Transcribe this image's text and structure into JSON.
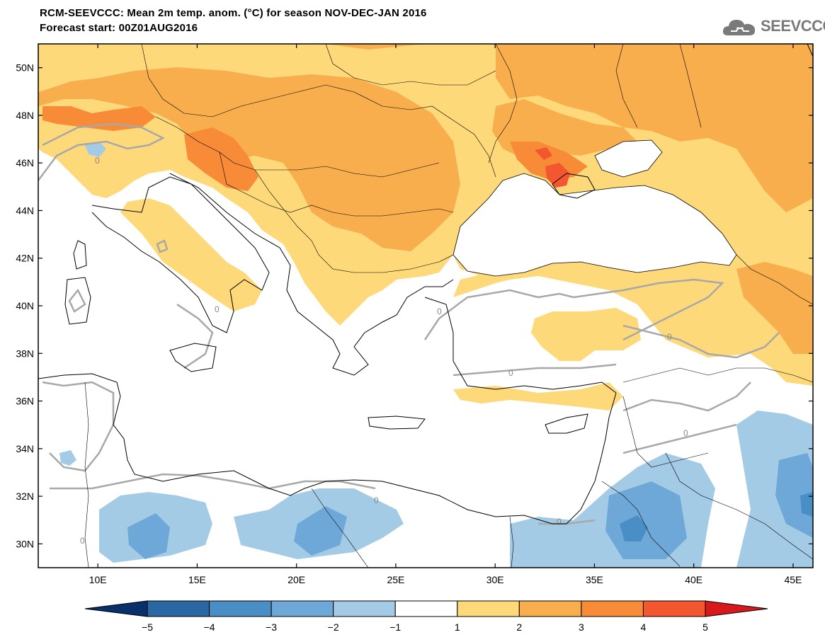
{
  "header": {
    "title_line1": "RCM-SEEVCCC: Mean 2m temp. anom. (°C) for season NOV-DEC-JAN 2016",
    "title_line2": "Forecast start: 00Z01AUG2016"
  },
  "logo": {
    "text": "SEEVCCC",
    "icon": "cloud-icon"
  },
  "map": {
    "lon_range": [
      7,
      46
    ],
    "lat_range": [
      29,
      51
    ],
    "lat_ticks": [
      "50N",
      "48N",
      "46N",
      "44N",
      "42N",
      "40N",
      "38N",
      "36N",
      "34N",
      "32N",
      "30N"
    ],
    "lon_ticks": [
      "10E",
      "15E",
      "20E",
      "25E",
      "30E",
      "35E",
      "40E",
      "45E"
    ],
    "contour_label": "0"
  },
  "colorbar": {
    "labels": [
      "−5",
      "−4",
      "−3",
      "−2",
      "−1",
      "1",
      "2",
      "3",
      "4",
      "5"
    ],
    "colors": [
      "#08306b",
      "#2a67a3",
      "#4a8ec6",
      "#6ea8d8",
      "#a3cbe5",
      "#ffffff",
      "#fdd97a",
      "#f9ae4e",
      "#f78b38",
      "#f4572f",
      "#d7191c"
    ]
  },
  "palette": {
    "pos1": "#fdd97a",
    "pos2": "#f9ae4e",
    "pos3": "#f78b38",
    "pos4": "#f4572f",
    "neg1": "#a3cbe5",
    "neg2": "#6ea8d8",
    "neg3": "#4a8ec6",
    "contour": "#a8a8a8"
  }
}
